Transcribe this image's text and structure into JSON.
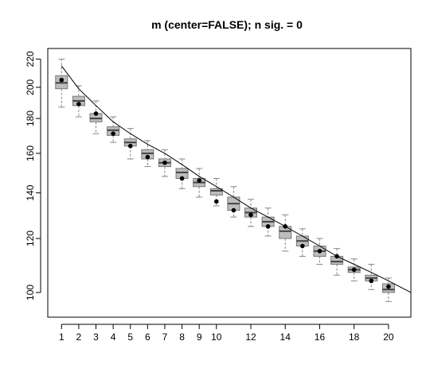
{
  "chart_data": {
    "type": "box",
    "title": "m (center=FALSE); n sig. = 0",
    "xlabel": "",
    "ylabel": "",
    "y_scale": "log",
    "ylim": [
      92,
      228
    ],
    "xlim": [
      0.2,
      21.3
    ],
    "y_ticks": [
      100,
      120,
      140,
      160,
      180,
      200,
      220
    ],
    "x_ticks": [
      1,
      2,
      3,
      4,
      5,
      6,
      7,
      8,
      9,
      10,
      12,
      14,
      16,
      18,
      20
    ],
    "colors": {
      "box_fill": "#bdbdbd",
      "whisker": "#888888",
      "point": "#000000",
      "curve": "#000000"
    },
    "boxes": [
      {
        "x": 1,
        "whislo": 187,
        "q1": 199,
        "med": 203,
        "q3": 208,
        "whishi": 220,
        "point": 205
      },
      {
        "x": 2,
        "whislo": 181,
        "q1": 188,
        "med": 191,
        "q3": 194,
        "whishi": 201,
        "point": 189
      },
      {
        "x": 3,
        "whislo": 171,
        "q1": 178,
        "med": 180,
        "q3": 183,
        "whishi": 191,
        "point": 183
      },
      {
        "x": 4,
        "whislo": 166,
        "q1": 170,
        "med": 173,
        "q3": 175,
        "whishi": 181,
        "point": 171
      },
      {
        "x": 5,
        "whislo": 157,
        "q1": 164,
        "med": 166,
        "q3": 168,
        "whishi": 174,
        "point": 164
      },
      {
        "x": 6,
        "whislo": 153,
        "q1": 157,
        "med": 160,
        "q3": 162,
        "whishi": 167,
        "point": 158
      },
      {
        "x": 7,
        "whislo": 148,
        "q1": 153,
        "med": 155,
        "q3": 157,
        "whishi": 162,
        "point": 155
      },
      {
        "x": 8,
        "whislo": 142,
        "q1": 147,
        "med": 150,
        "q3": 152,
        "whishi": 157,
        "point": 147
      },
      {
        "x": 9,
        "whislo": 138,
        "q1": 143,
        "med": 145,
        "q3": 147,
        "whishi": 152,
        "point": 146
      },
      {
        "x": 10,
        "whislo": 134,
        "q1": 139,
        "med": 141,
        "q3": 142,
        "whishi": 147,
        "point": 136
      },
      {
        "x": 11,
        "whislo": 129,
        "q1": 132,
        "med": 135,
        "q3": 138,
        "whishi": 143,
        "point": 132
      },
      {
        "x": 12,
        "whislo": 125,
        "q1": 129,
        "med": 131,
        "q3": 133,
        "whishi": 137,
        "point": 130
      },
      {
        "x": 13,
        "whislo": 121,
        "q1": 125,
        "med": 127,
        "q3": 129,
        "whishi": 133,
        "point": 125
      },
      {
        "x": 14,
        "whislo": 115,
        "q1": 120,
        "med": 123,
        "q3": 125,
        "whishi": 130,
        "point": 125
      },
      {
        "x": 15,
        "whislo": 113,
        "q1": 117,
        "med": 119,
        "q3": 121,
        "whishi": 124,
        "point": 117
      },
      {
        "x": 16,
        "whislo": 110,
        "q1": 113,
        "med": 115,
        "q3": 117,
        "whishi": 120,
        "point": 115
      },
      {
        "x": 17,
        "whislo": 106,
        "q1": 110,
        "med": 111,
        "q3": 113,
        "whishi": 116,
        "point": 113
      },
      {
        "x": 18,
        "whislo": 104,
        "q1": 107,
        "med": 108,
        "q3": 109,
        "whishi": 112,
        "point": 108
      },
      {
        "x": 19,
        "whislo": 101,
        "q1": 104,
        "med": 105,
        "q3": 106,
        "whishi": 110,
        "point": 104
      },
      {
        "x": 20,
        "whislo": 97,
        "q1": 100,
        "med": 101,
        "q3": 103,
        "whishi": 105,
        "point": 102
      }
    ],
    "curve": {
      "x": [
        1,
        2,
        3,
        4,
        5,
        6,
        7,
        8,
        9,
        10,
        11,
        12,
        13,
        14,
        15,
        16,
        17,
        18,
        19,
        20,
        21.3
      ],
      "y": [
        215,
        199,
        188,
        178,
        171,
        165,
        160,
        154,
        148,
        143,
        138,
        133,
        129,
        125,
        121,
        117,
        113,
        110,
        107,
        104,
        100
      ]
    }
  }
}
